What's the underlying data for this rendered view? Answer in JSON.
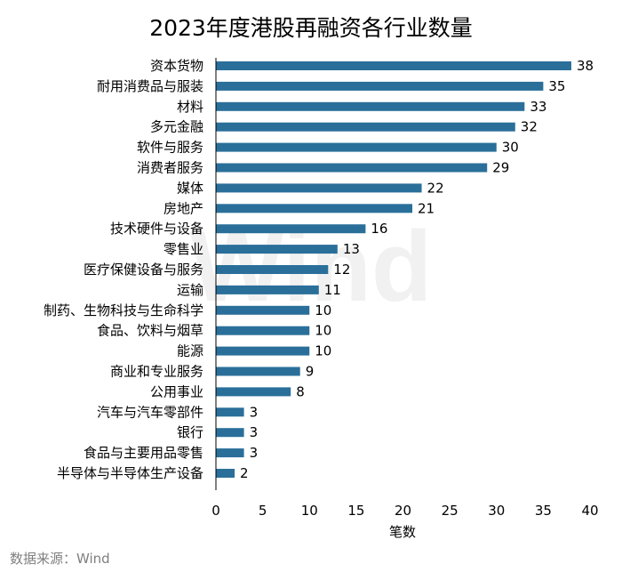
{
  "source": "数据来源：Wind",
  "watermark": "Wind",
  "colors": {
    "bar": "#2a6f9a",
    "axis": "#000000",
    "watermark": "#f1f1f1",
    "source": "#7f7f7f"
  },
  "chart_data": {
    "type": "bar",
    "orientation": "horizontal",
    "title": "2023年度港股再融资各行业数量",
    "xlabel": "笔数",
    "ylabel": "",
    "xlim": [
      0,
      40
    ],
    "xticks": [
      0,
      5,
      10,
      15,
      20,
      25,
      30,
      35,
      40
    ],
    "grid": false,
    "categories": [
      "资本货物",
      "耐用消费品与服装",
      "材料",
      "多元金融",
      "软件与服务",
      "消费者服务",
      "媒体",
      "房地产",
      "技术硬件与设备",
      "零售业",
      "医疗保健设备与服务",
      "运输",
      "制药、生物科技与生命科学",
      "食品、饮料与烟草",
      "能源",
      "商业和专业服务",
      "公用事业",
      "汽车与汽车零部件",
      "银行",
      "食品与主要用品零售",
      "半导体与半导体生产设备"
    ],
    "values": [
      38,
      35,
      33,
      32,
      30,
      29,
      22,
      21,
      16,
      13,
      12,
      11,
      10,
      10,
      10,
      9,
      8,
      3,
      3,
      3,
      2
    ]
  }
}
